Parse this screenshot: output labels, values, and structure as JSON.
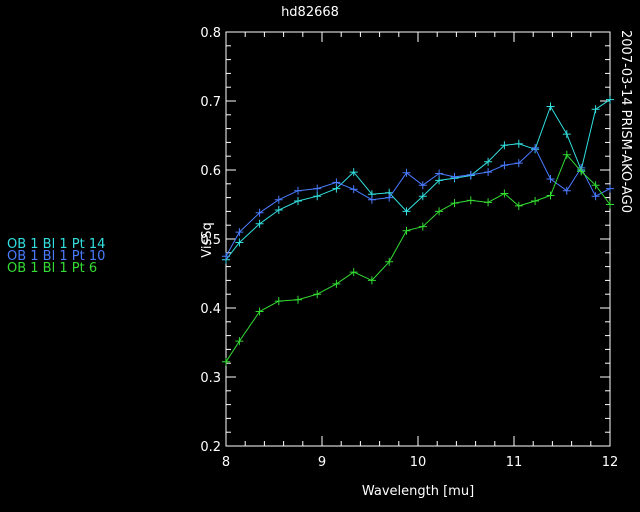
{
  "chart_data": {
    "type": "line",
    "title": "hd82668",
    "side_label": "2007-03-14 PRISM-AKO-AG0",
    "xlabel": "Wavelength [mu]",
    "ylabel": "VisSq",
    "xlim": [
      8,
      12
    ],
    "ylim": [
      0.2,
      0.8
    ],
    "x_ticks": [
      8,
      9,
      10,
      11,
      12
    ],
    "x_tick_labels": [
      "8",
      "9",
      "10",
      "11",
      "12"
    ],
    "y_ticks": [
      0.2,
      0.3,
      0.4,
      0.5,
      0.6,
      0.7,
      0.8
    ],
    "y_tick_labels": [
      "0.2",
      "0.3",
      "0.4",
      "0.5",
      "0.6",
      "0.7",
      "0.8"
    ],
    "grid": false,
    "legend_position": "left",
    "background": "#000000",
    "axis_color": "#ffffff",
    "series": [
      {
        "name": "OB 1 Bl 1 Pt 14",
        "color": "#33e0e0",
        "x": [
          8.0,
          8.14,
          8.35,
          8.55,
          8.75,
          8.95,
          9.15,
          9.33,
          9.52,
          9.7,
          9.88,
          10.05,
          10.22,
          10.38,
          10.55,
          10.73,
          10.9,
          11.05,
          11.22,
          11.38,
          11.55,
          11.7,
          11.85,
          12.0
        ],
        "y": [
          0.47,
          0.495,
          0.522,
          0.542,
          0.555,
          0.562,
          0.573,
          0.597,
          0.565,
          0.567,
          0.54,
          0.562,
          0.585,
          0.588,
          0.592,
          0.612,
          0.636,
          0.638,
          0.63,
          0.692,
          0.652,
          0.6,
          0.688,
          0.702
        ]
      },
      {
        "name": "OB 1 Bl 1 Pt 10",
        "color": "#4a7cff",
        "x": [
          8.0,
          8.14,
          8.35,
          8.55,
          8.75,
          8.95,
          9.15,
          9.33,
          9.52,
          9.7,
          9.88,
          10.05,
          10.22,
          10.38,
          10.55,
          10.73,
          10.9,
          11.05,
          11.22,
          11.38,
          11.55,
          11.7,
          11.85,
          12.0
        ],
        "y": [
          0.475,
          0.51,
          0.538,
          0.557,
          0.57,
          0.573,
          0.582,
          0.572,
          0.557,
          0.56,
          0.596,
          0.578,
          0.595,
          0.59,
          0.593,
          0.597,
          0.607,
          0.61,
          0.632,
          0.587,
          0.57,
          0.603,
          0.562,
          0.573
        ]
      },
      {
        "name": "OB 1 Bl 1 Pt 6",
        "color": "#33dd33",
        "x": [
          8.0,
          8.14,
          8.35,
          8.55,
          8.75,
          8.95,
          9.15,
          9.33,
          9.52,
          9.7,
          9.88,
          10.05,
          10.22,
          10.38,
          10.55,
          10.73,
          10.9,
          11.05,
          11.22,
          11.38,
          11.55,
          11.7,
          11.85,
          12.0
        ],
        "y": [
          0.322,
          0.352,
          0.395,
          0.41,
          0.412,
          0.42,
          0.435,
          0.452,
          0.44,
          0.467,
          0.512,
          0.518,
          0.54,
          0.552,
          0.556,
          0.553,
          0.566,
          0.548,
          0.555,
          0.563,
          0.622,
          0.598,
          0.578,
          0.55
        ]
      }
    ]
  }
}
